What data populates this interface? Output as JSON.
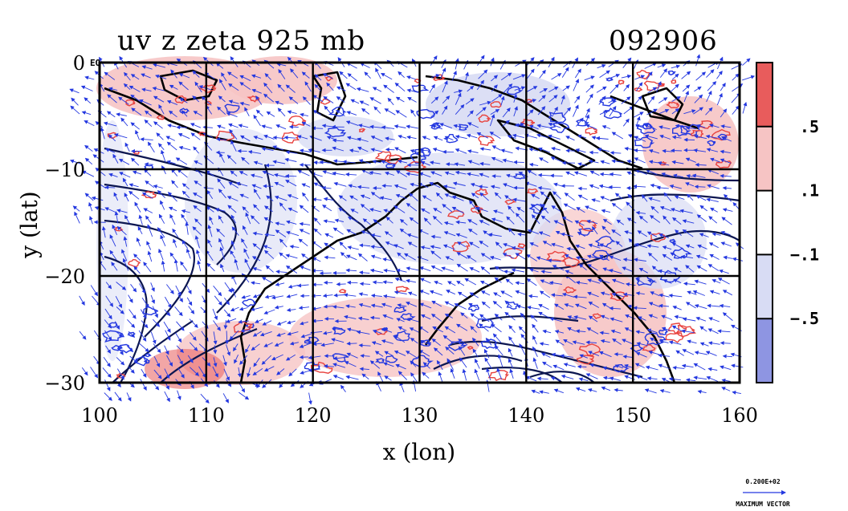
{
  "chart_data": {
    "type": "heatmap",
    "title_left": "uv z zeta 925 mb",
    "title_right": "092906",
    "xlabel": "x (lon)",
    "ylabel": "y (lat)",
    "xlim": [
      100,
      160
    ],
    "ylim": [
      -30,
      0
    ],
    "x_ticks": [
      {
        "value": 100,
        "label": "100"
      },
      {
        "value": 110,
        "label": "110"
      },
      {
        "value": 120,
        "label": "120"
      },
      {
        "value": 130,
        "label": "130"
      },
      {
        "value": 140,
        "label": "140"
      },
      {
        "value": 150,
        "label": "150"
      },
      {
        "value": 160,
        "label": "160"
      }
    ],
    "y_ticks": [
      {
        "value": 0,
        "label": "0"
      },
      {
        "value": -10,
        "label": "−10"
      },
      {
        "value": -20,
        "label": "−20"
      },
      {
        "value": -30,
        "label": "−30"
      }
    ],
    "corner_label": "EQ",
    "grid": true,
    "colorbar": {
      "levels": [
        {
          "label": ".5"
        },
        {
          "label": ".1"
        },
        {
          "label": "−.1"
        },
        {
          "label": "−.5"
        }
      ],
      "colors": [
        "#e85c5c",
        "#f6c4c4",
        "#ffffff",
        "#d8dcf4",
        "#8e95e2"
      ]
    },
    "max_vector": {
      "value": "0.200E+02",
      "label": "MAXIMUM VECTOR"
    },
    "colors": {
      "positive": "#e8433f",
      "negative": "#2438e0",
      "contour": "#0c1650",
      "coast": "#000000"
    }
  }
}
